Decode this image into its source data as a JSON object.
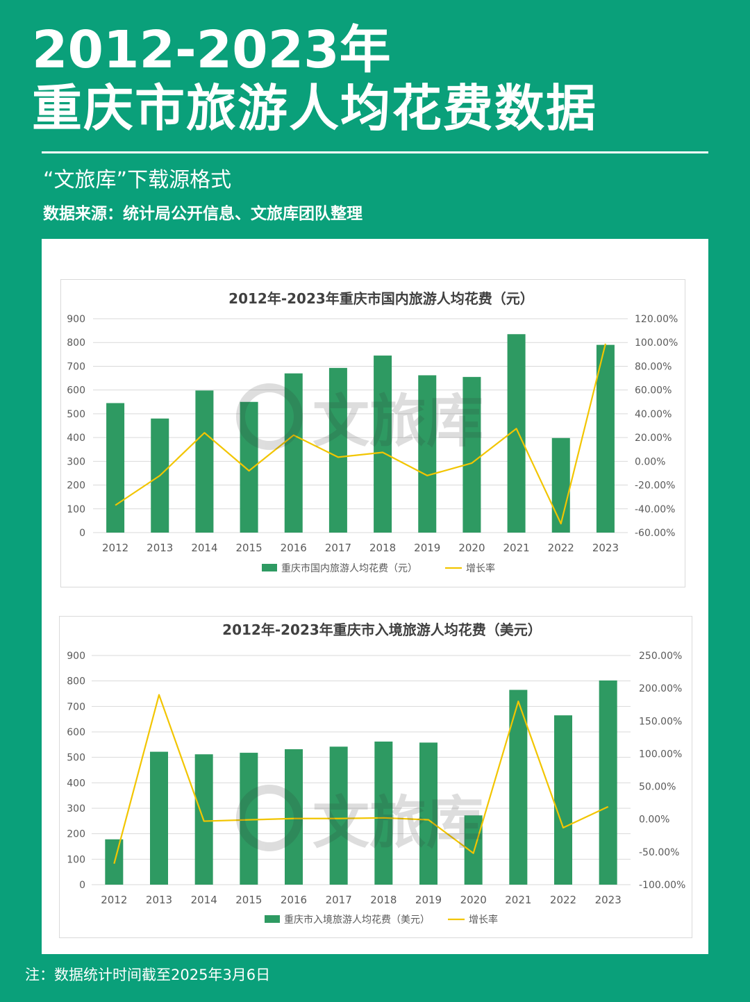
{
  "header": {
    "title_line1": "2012-2023年",
    "title_line2": "重庆市旅游人均花费数据",
    "subtitle": "“文旅库”下载源格式",
    "source": "数据来源：统计局公开信息、文旅库团队整理"
  },
  "footer": {
    "note": "注：数据统计时间截至2025年3月6日"
  },
  "watermark": {
    "text": "文旅库"
  },
  "colors": {
    "background": "#0aa07a",
    "bar": "#2e9a62",
    "line": "#f2c500",
    "grid": "#d9d9d9",
    "axis_text": "#595959"
  },
  "chart_data": [
    {
      "type": "bar",
      "title": "2012年-2023年重庆市国内旅游人均花费（元）",
      "categories": [
        "2012",
        "2013",
        "2014",
        "2015",
        "2016",
        "2017",
        "2018",
        "2019",
        "2020",
        "2021",
        "2022",
        "2023"
      ],
      "series": [
        {
          "name": "重庆市国内旅游人均花费（元）",
          "type": "bar",
          "axis": "left",
          "values": [
            545,
            480,
            598,
            550,
            670,
            693,
            745,
            662,
            655,
            835,
            398,
            790
          ]
        },
        {
          "name": "增长率",
          "type": "line",
          "axis": "right",
          "values": [
            -37.0,
            -12.0,
            24.0,
            -8.0,
            22.0,
            3.5,
            7.5,
            -12.0,
            -1.5,
            27.5,
            -52.5,
            99.0
          ]
        }
      ],
      "ylim_left": [
        0,
        900
      ],
      "ylim_right": [
        -60,
        120
      ],
      "yticks_left": [
        "900",
        "800",
        "700",
        "600",
        "500",
        "400",
        "300",
        "200",
        "100",
        "0"
      ],
      "yticks_right": [
        "120.00%",
        "100.00%",
        "80.00%",
        "60.00%",
        "40.00%",
        "20.00%",
        "0.00%",
        "-20.00%",
        "-40.00%",
        "-60.00%"
      ],
      "legend_position": "bottom",
      "grid": true
    },
    {
      "type": "bar",
      "title": "2012年-2023年重庆市入境旅游人均花费（美元）",
      "categories": [
        "2012",
        "2013",
        "2014",
        "2015",
        "2016",
        "2017",
        "2018",
        "2019",
        "2020",
        "2021",
        "2022",
        "2023"
      ],
      "series": [
        {
          "name": "重庆市入境旅游人均花费（美元）",
          "type": "bar",
          "axis": "left",
          "values": [
            178,
            522,
            512,
            518,
            532,
            542,
            562,
            558,
            272,
            765,
            665,
            802
          ]
        },
        {
          "name": "增长率",
          "type": "line",
          "axis": "right",
          "values": [
            -68.0,
            190.0,
            -3.0,
            -1.0,
            1.0,
            1.0,
            2.0,
            -1.0,
            -52.0,
            180.0,
            -13.0,
            19.0
          ]
        }
      ],
      "ylim_left": [
        0,
        900
      ],
      "ylim_right": [
        -100,
        250
      ],
      "yticks_left": [
        "900",
        "800",
        "700",
        "600",
        "500",
        "400",
        "300",
        "200",
        "100",
        "0"
      ],
      "yticks_right": [
        "250.00%",
        "200.00%",
        "150.00%",
        "100.00%",
        "50.00%",
        "0.00%",
        "-50.00%",
        "-100.00%"
      ],
      "legend_position": "bottom",
      "grid": true
    }
  ]
}
